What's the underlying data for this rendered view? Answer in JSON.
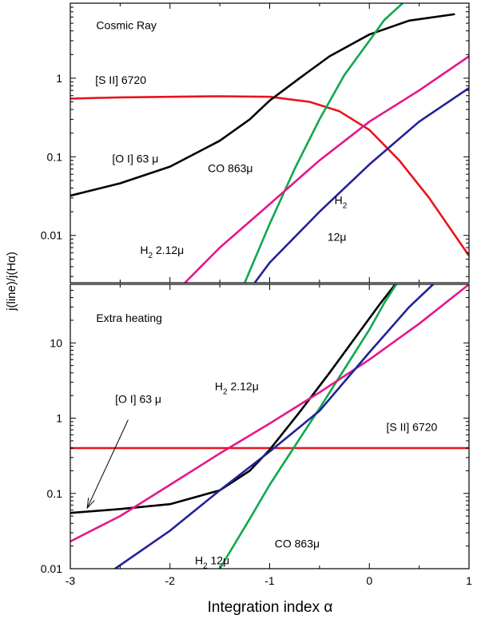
{
  "chart_data": [
    {
      "type": "line",
      "title": "Cosmic Ray",
      "xlabel": "Integration index α",
      "ylabel": "j(line)/j(Hα)",
      "xlim": [
        -3,
        1
      ],
      "ylim": [
        0.0025,
        9
      ],
      "yscale": "log",
      "x_ticks": [
        "-3",
        "-2",
        "-1",
        "0",
        "1"
      ],
      "y_ticks": [
        {
          "value": 0.01,
          "label": "0.01"
        },
        {
          "value": 0.1,
          "label": "0.1"
        },
        {
          "value": 1,
          "label": "1"
        }
      ],
      "series": [
        {
          "name": "[S II] 6720",
          "color": "#e8141c",
          "points": [
            [
              -3,
              0.55
            ],
            [
              -2.5,
              0.57
            ],
            [
              -2,
              0.58
            ],
            [
              -1.5,
              0.59
            ],
            [
              -1,
              0.58
            ],
            [
              -0.6,
              0.5
            ],
            [
              -0.3,
              0.38
            ],
            [
              0,
              0.22
            ],
            [
              0.3,
              0.09
            ],
            [
              0.6,
              0.03
            ],
            [
              1,
              0.0055
            ]
          ]
        },
        {
          "name": "[O I] 63 μ",
          "color": "#000000",
          "points": [
            [
              -3,
              0.032
            ],
            [
              -2.5,
              0.046
            ],
            [
              -2,
              0.075
            ],
            [
              -1.5,
              0.16
            ],
            [
              -1.2,
              0.3
            ],
            [
              -1,
              0.52
            ],
            [
              -0.7,
              1.0
            ],
            [
              -0.4,
              1.9
            ],
            [
              0,
              3.6
            ],
            [
              0.4,
              5.4
            ],
            [
              0.85,
              6.5
            ]
          ]
        },
        {
          "name": "CO 863μ",
          "color": "#10a84e",
          "points": [
            [
              -1.25,
              0.0025
            ],
            [
              -1,
              0.014
            ],
            [
              -0.75,
              0.07
            ],
            [
              -0.5,
              0.3
            ],
            [
              -0.25,
              1.1
            ],
            [
              0,
              3.0
            ],
            [
              0.15,
              5.5
            ],
            [
              0.33,
              8.9
            ]
          ]
        },
        {
          "name": "H2 2.12μ",
          "color": "#e6168c",
          "points": [
            [
              -1.85,
              0.0025
            ],
            [
              -1.5,
              0.007
            ],
            [
              -1,
              0.025
            ],
            [
              -0.5,
              0.09
            ],
            [
              0,
              0.28
            ],
            [
              0.5,
              0.7
            ],
            [
              1,
              1.9
            ]
          ]
        },
        {
          "name": "H2 12μ",
          "color": "#22229a",
          "points": [
            [
              -1.15,
              0.0025
            ],
            [
              -1,
              0.0045
            ],
            [
              -0.5,
              0.02
            ],
            [
              0,
              0.08
            ],
            [
              0.5,
              0.28
            ],
            [
              1,
              0.75
            ]
          ]
        }
      ],
      "annotations": [
        {
          "text": "Cosmic Ray",
          "x": -2.74,
          "y": 4.2
        },
        {
          "text": "[S II] 6720",
          "x": -2.75,
          "y": 0.85
        },
        {
          "text": "[O I] 63 μ",
          "x": -2.58,
          "y": 0.085
        },
        {
          "text": "CO 863μ",
          "x": -1.62,
          "y": 0.064
        },
        {
          "text": "H",
          "sub": "2",
          "text2": "",
          "x": -0.35,
          "y": 0.025
        },
        {
          "text": "12μ",
          "x": -0.42,
          "y": 0.0085
        },
        {
          "text": "H",
          "sub": "2",
          "text2": " 2.12μ",
          "x": -2.3,
          "y": 0.0058
        }
      ]
    },
    {
      "type": "line",
      "title": "Extra heating",
      "xlabel": "Integration index α",
      "ylabel": "j(line)/j(Hα)",
      "xlim": [
        -3,
        1
      ],
      "ylim": [
        0.01,
        60
      ],
      "yscale": "log",
      "x_ticks": [
        "-3",
        "-2",
        "-1",
        "0",
        "1"
      ],
      "y_ticks": [
        {
          "value": 0.01,
          "label": "0.01"
        },
        {
          "value": 0.1,
          "label": "0.1"
        },
        {
          "value": 1,
          "label": "1"
        },
        {
          "value": 10,
          "label": "10"
        }
      ],
      "series": [
        {
          "name": "[S II] 6720",
          "color": "#e8141c",
          "points": [
            [
              -3,
              0.4
            ],
            [
              -2,
              0.4
            ],
            [
              -1,
              0.4
            ],
            [
              0,
              0.4
            ],
            [
              0.8,
              0.4
            ],
            [
              1,
              0.4
            ]
          ]
        },
        {
          "name": "[O I] 63 μ",
          "color": "#000000",
          "points": [
            [
              -3,
              0.055
            ],
            [
              -2.5,
              0.062
            ],
            [
              -2,
              0.072
            ],
            [
              -1.5,
              0.11
            ],
            [
              -1.2,
              0.2
            ],
            [
              -1,
              0.38
            ],
            [
              -0.7,
              1.2
            ],
            [
              -0.4,
              4.0
            ],
            [
              -0.1,
              14
            ],
            [
              0.1,
              32
            ],
            [
              0.26,
              60
            ]
          ]
        },
        {
          "name": "CO 863μ",
          "color": "#10a84e",
          "points": [
            [
              -1.5,
              0.01
            ],
            [
              -1.2,
              0.046
            ],
            [
              -1,
              0.13
            ],
            [
              -0.75,
              0.42
            ],
            [
              -0.5,
              1.35
            ],
            [
              -0.25,
              4.5
            ],
            [
              0,
              15
            ],
            [
              0.15,
              34
            ],
            [
              0.27,
              60
            ]
          ]
        },
        {
          "name": "H2 2.12μ",
          "color": "#e6168c",
          "points": [
            [
              -3,
              0.023
            ],
            [
              -2.5,
              0.05
            ],
            [
              -2,
              0.13
            ],
            [
              -1.5,
              0.34
            ],
            [
              -1,
              0.85
            ],
            [
              -0.5,
              2.2
            ],
            [
              0,
              6.0
            ],
            [
              0.5,
              18
            ],
            [
              1,
              60
            ]
          ]
        },
        {
          "name": "H2 12μ",
          "color": "#22229a",
          "points": [
            [
              -2.55,
              0.01
            ],
            [
              -2,
              0.032
            ],
            [
              -1.5,
              0.11
            ],
            [
              -1,
              0.36
            ],
            [
              -0.5,
              1.25
            ],
            [
              0,
              7.5
            ],
            [
              0.4,
              30
            ],
            [
              0.64,
              60
            ]
          ]
        }
      ],
      "annotations": [
        {
          "text": "Extra heating",
          "x": -2.74,
          "y": 19
        },
        {
          "text": "[O I] 63 μ",
          "x": -2.55,
          "y": 1.6
        },
        {
          "text": "H",
          "sub": "2",
          "text2": " 2.12μ",
          "x": -1.55,
          "y": 2.35
        },
        {
          "text": "[S II] 6720",
          "x": 0.17,
          "y": 0.68
        },
        {
          "text": "CO 863μ",
          "x": -0.95,
          "y": 0.019
        },
        {
          "text": "H",
          "sub": "2",
          "text2": " 12μ",
          "x": -1.75,
          "y": 0.0115
        }
      ],
      "arrow": {
        "from": [
          -2.42,
          0.95
        ],
        "to": [
          -2.83,
          0.064
        ]
      }
    }
  ]
}
